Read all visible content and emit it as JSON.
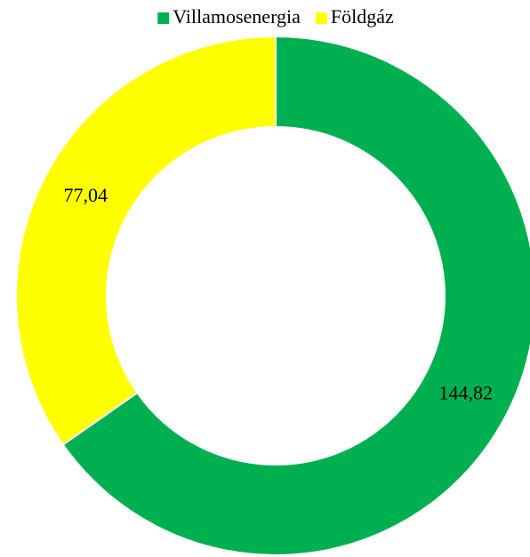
{
  "chart_data": {
    "type": "donut",
    "categories": [
      "Villamosenergia",
      "Földgáz"
    ],
    "values": [
      144.82,
      77.04
    ],
    "value_labels": [
      "144,82",
      "77,04"
    ],
    "colors": [
      "#00b050",
      "#ffff00"
    ],
    "legend": "top"
  }
}
